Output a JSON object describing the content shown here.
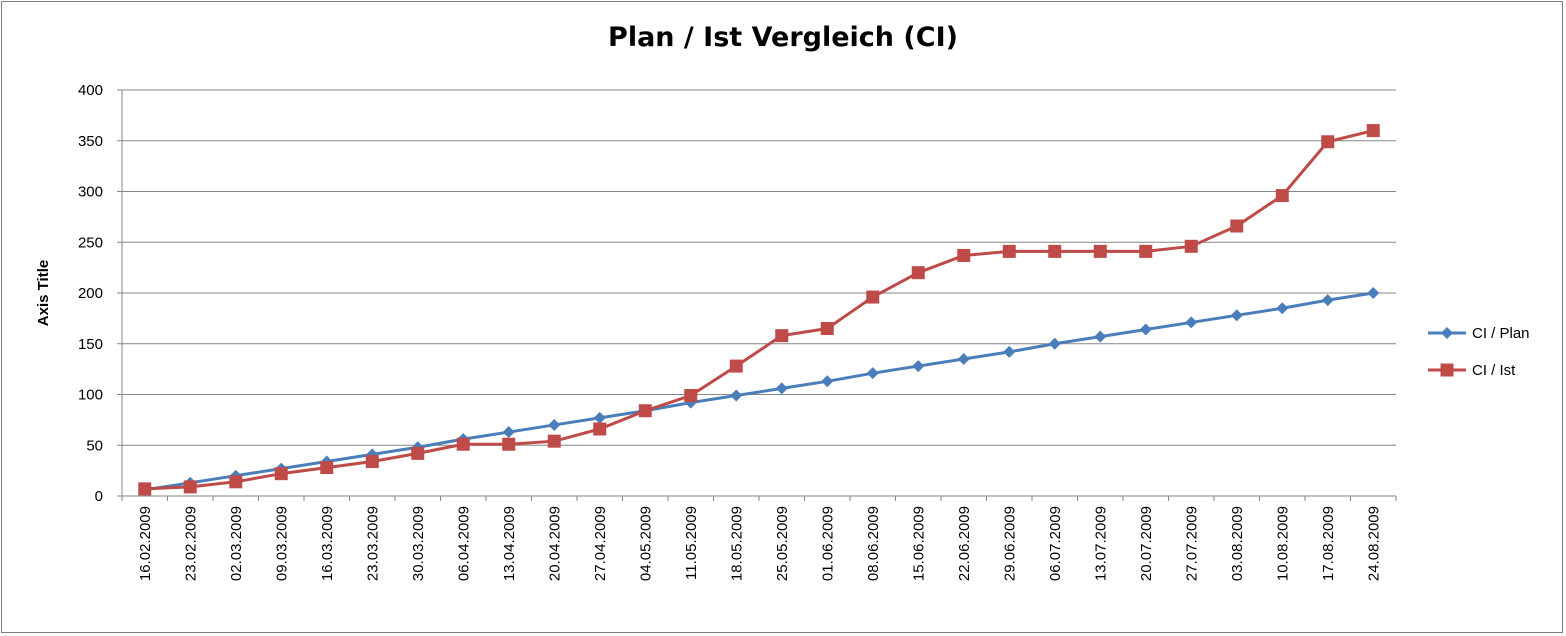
{
  "chart_data": {
    "type": "line",
    "title": "Plan / Ist Vergleich (CI)",
    "xlabel": "",
    "ylabel": "Axis Title",
    "ylim": [
      0,
      400
    ],
    "yticks": [
      0,
      50,
      100,
      150,
      200,
      250,
      300,
      350,
      400
    ],
    "grid": true,
    "legend_position": "right",
    "categories": [
      "16.02.2009",
      "23.02.2009",
      "02.03.2009",
      "09.03.2009",
      "16.03.2009",
      "23.03.2009",
      "30.03.2009",
      "06.04.2009",
      "13.04.2009",
      "20.04.2009",
      "27.04.2009",
      "04.05.2009",
      "11.05.2009",
      "18.05.2009",
      "25.05.2009",
      "01.06.2009",
      "08.06.2009",
      "15.06.2009",
      "22.06.2009",
      "29.06.2009",
      "06.07.2009",
      "13.07.2009",
      "20.07.2009",
      "27.07.2009",
      "03.08.2009",
      "10.08.2009",
      "17.08.2009",
      "24.08.2009"
    ],
    "series": [
      {
        "name": "CI / Plan",
        "color": "#4a7ebb",
        "marker": "diamond",
        "values": [
          6,
          13,
          20,
          27,
          34,
          41,
          48,
          56,
          63,
          70,
          77,
          84,
          92,
          99,
          106,
          113,
          121,
          128,
          135,
          142,
          150,
          157,
          164,
          171,
          178,
          185,
          193,
          200
        ]
      },
      {
        "name": "CI / Ist",
        "color": "#be4b48",
        "marker": "square",
        "values": [
          7,
          9,
          14,
          22,
          28,
          34,
          42,
          51,
          51,
          54,
          66,
          84,
          99,
          128,
          158,
          165,
          196,
          220,
          237,
          241,
          241,
          241,
          241,
          246,
          266,
          296,
          349,
          360
        ]
      }
    ]
  }
}
